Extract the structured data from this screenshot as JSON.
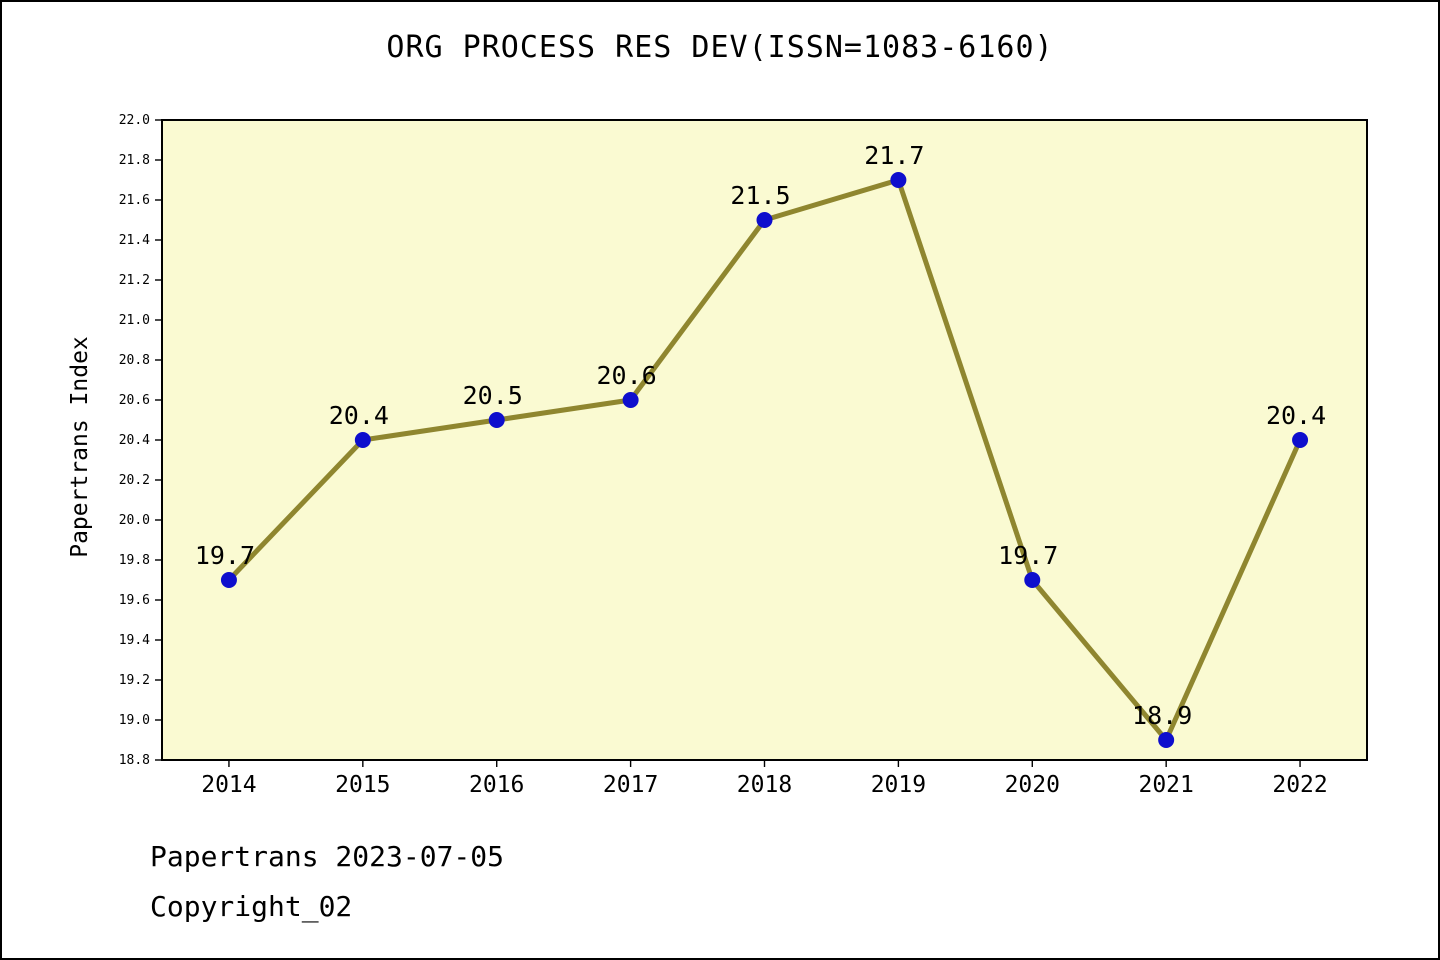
{
  "page": {
    "title": "ORG PROCESS RES DEV(ISSN=1083-6160)"
  },
  "footer": {
    "line1": "Papertrans 2023-07-05",
    "line2": "Copyright_02"
  },
  "chart_data": {
    "type": "line",
    "title": "ORG PROCESS RES DEV(ISSN=1083-6160)",
    "xlabel": "",
    "ylabel": "Papertrans Index",
    "categories": [
      "2014",
      "2015",
      "2016",
      "2017",
      "2018",
      "2019",
      "2020",
      "2021",
      "2022"
    ],
    "values": [
      19.7,
      20.4,
      20.5,
      20.6,
      21.5,
      21.7,
      19.7,
      18.9,
      20.4
    ],
    "point_labels": [
      "19.7",
      "20.4",
      "20.5",
      "20.6",
      "21.5",
      "21.7",
      "19.7",
      "18.9",
      "20.4"
    ],
    "ylim": [
      18.8,
      22.0
    ],
    "ytick_step": 0.2,
    "grid": false,
    "legend": null,
    "colors": {
      "plot_bg": "#FAFAD2",
      "line": "#8F862F",
      "marker": "#0E0ECD",
      "axis": "#000000",
      "text": "#000000"
    }
  }
}
